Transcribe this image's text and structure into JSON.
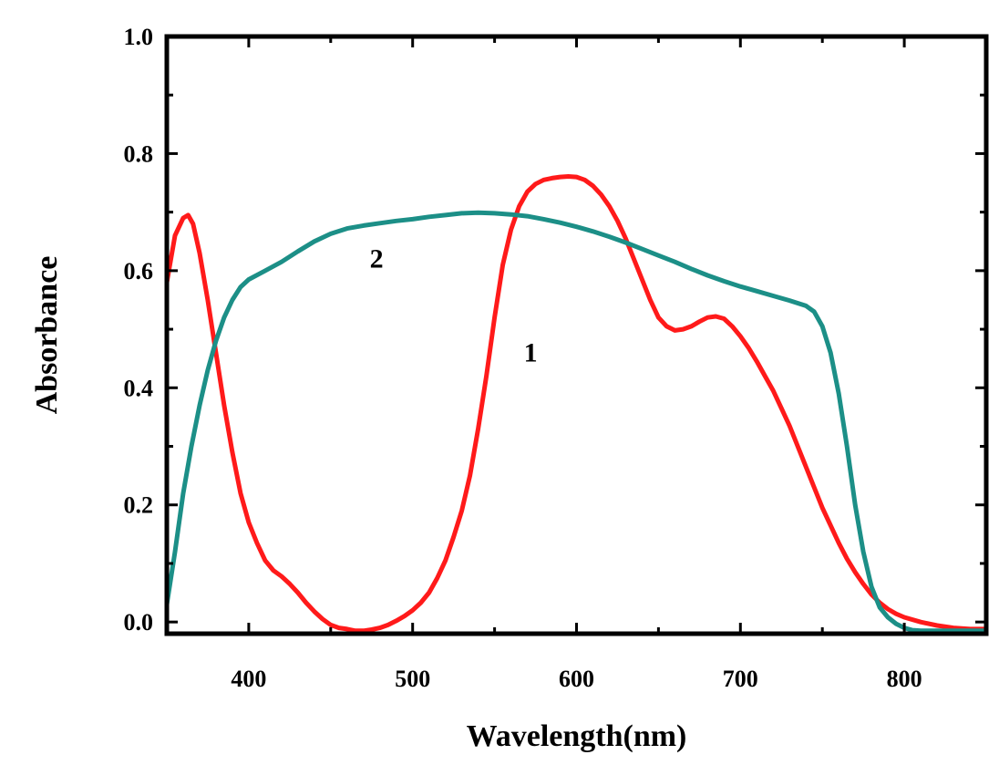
{
  "chart_data": {
    "type": "line",
    "xlabel": "Wavelength(nm)",
    "ylabel": "Absorbance",
    "xlim": [
      350,
      850
    ],
    "ylim": [
      -0.02,
      1.0
    ],
    "x_ticks": [
      400,
      500,
      600,
      700,
      800
    ],
    "y_ticks": [
      0.0,
      0.2,
      0.4,
      0.6,
      0.8,
      1.0
    ],
    "y_tick_labels": [
      "0.0",
      "0.2",
      "0.4",
      "0.6",
      "0.8",
      "1.0"
    ],
    "grid": false,
    "legend": "none",
    "series": [
      {
        "name": "1",
        "color": "#ff1a1a",
        "x": [
          350,
          355,
          360,
          363,
          366,
          370,
          375,
          380,
          385,
          390,
          395,
          400,
          405,
          410,
          415,
          420,
          425,
          430,
          435,
          440,
          445,
          450,
          455,
          460,
          465,
          470,
          475,
          480,
          485,
          490,
          495,
          500,
          505,
          510,
          515,
          520,
          525,
          530,
          535,
          540,
          545,
          550,
          555,
          560,
          565,
          570,
          575,
          580,
          585,
          590,
          595,
          600,
          605,
          610,
          615,
          620,
          625,
          630,
          635,
          640,
          645,
          650,
          655,
          660,
          665,
          670,
          675,
          680,
          685,
          690,
          695,
          700,
          705,
          710,
          715,
          720,
          725,
          730,
          735,
          740,
          745,
          750,
          755,
          760,
          765,
          770,
          775,
          780,
          785,
          790,
          795,
          800,
          810,
          820,
          830,
          840,
          850
        ],
        "y": [
          0.58,
          0.66,
          0.69,
          0.695,
          0.68,
          0.63,
          0.55,
          0.46,
          0.37,
          0.29,
          0.22,
          0.17,
          0.135,
          0.105,
          0.088,
          0.078,
          0.065,
          0.05,
          0.033,
          0.018,
          0.005,
          -0.005,
          -0.01,
          -0.012,
          -0.015,
          -0.015,
          -0.013,
          -0.01,
          -0.005,
          0.002,
          0.01,
          0.02,
          0.033,
          0.05,
          0.075,
          0.105,
          0.145,
          0.19,
          0.25,
          0.33,
          0.42,
          0.52,
          0.61,
          0.67,
          0.71,
          0.735,
          0.748,
          0.755,
          0.758,
          0.76,
          0.761,
          0.76,
          0.755,
          0.745,
          0.73,
          0.71,
          0.685,
          0.655,
          0.62,
          0.585,
          0.55,
          0.52,
          0.505,
          0.498,
          0.5,
          0.505,
          0.513,
          0.52,
          0.522,
          0.518,
          0.505,
          0.488,
          0.468,
          0.445,
          0.42,
          0.395,
          0.365,
          0.335,
          0.3,
          0.265,
          0.23,
          0.195,
          0.165,
          0.135,
          0.108,
          0.085,
          0.065,
          0.047,
          0.033,
          0.022,
          0.014,
          0.008,
          0.0,
          -0.006,
          -0.01,
          -0.012,
          -0.012
        ]
      },
      {
        "name": "2",
        "color": "#1c8f87",
        "x": [
          350,
          355,
          360,
          365,
          370,
          375,
          380,
          385,
          390,
          395,
          400,
          410,
          420,
          430,
          440,
          450,
          460,
          470,
          480,
          490,
          500,
          510,
          520,
          530,
          540,
          550,
          560,
          570,
          580,
          590,
          600,
          610,
          620,
          630,
          640,
          650,
          660,
          670,
          680,
          690,
          700,
          710,
          720,
          730,
          740,
          745,
          750,
          755,
          760,
          765,
          770,
          775,
          780,
          785,
          790,
          795,
          800,
          805,
          810,
          820,
          830,
          840,
          850
        ],
        "y": [
          0.03,
          0.12,
          0.22,
          0.3,
          0.37,
          0.43,
          0.48,
          0.52,
          0.55,
          0.572,
          0.585,
          0.6,
          0.615,
          0.633,
          0.65,
          0.663,
          0.672,
          0.677,
          0.681,
          0.685,
          0.688,
          0.692,
          0.695,
          0.698,
          0.699,
          0.698,
          0.696,
          0.693,
          0.688,
          0.682,
          0.675,
          0.667,
          0.658,
          0.648,
          0.637,
          0.626,
          0.615,
          0.603,
          0.592,
          0.582,
          0.573,
          0.565,
          0.557,
          0.549,
          0.54,
          0.53,
          0.505,
          0.46,
          0.39,
          0.3,
          0.2,
          0.12,
          0.06,
          0.025,
          0.008,
          -0.003,
          -0.01,
          -0.014,
          -0.015,
          -0.015,
          -0.015,
          -0.015,
          -0.015
        ]
      }
    ],
    "annotations": [
      {
        "text": "2",
        "x": 478,
        "y": 0.605
      },
      {
        "text": "1",
        "x": 572,
        "y": 0.445
      }
    ]
  }
}
